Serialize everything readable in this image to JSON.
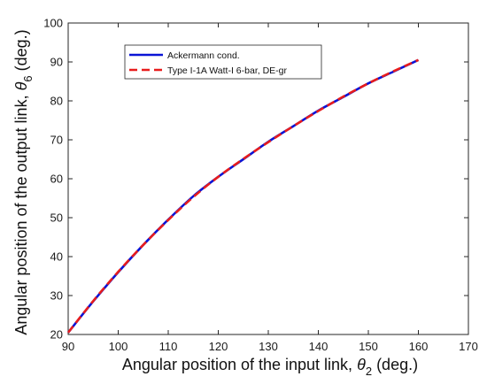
{
  "chart_data": {
    "type": "line",
    "xlabel": {
      "text": "Angular position of the input link, ",
      "symbol": "θ",
      "subscript": "2",
      "suffix": " (deg.)"
    },
    "ylabel": {
      "text": "Angular position of the output link, ",
      "symbol": "θ",
      "subscript": "6",
      "suffix": " (deg.)"
    },
    "xlim": [
      90,
      170
    ],
    "ylim": [
      20,
      100
    ],
    "xticks": [
      90,
      100,
      110,
      120,
      130,
      140,
      150,
      160,
      170
    ],
    "yticks": [
      20,
      30,
      40,
      50,
      60,
      70,
      80,
      90,
      100
    ],
    "grid": false,
    "legend_position": "top-left",
    "x": [
      90,
      95,
      100,
      105,
      110,
      115,
      120,
      125,
      130,
      135,
      140,
      145,
      150,
      155,
      160
    ],
    "series": [
      {
        "name": "Ackermann cond.",
        "color": "#0a14d6",
        "style": "solid",
        "values": [
          20.5,
          28.5,
          36.0,
          43.0,
          49.5,
          55.5,
          60.5,
          65.0,
          69.5,
          73.5,
          77.5,
          81.0,
          84.5,
          87.5,
          90.5
        ]
      },
      {
        "name": "Type I-1A Watt-I 6-bar, DE-gr",
        "color": "#e81c1c",
        "style": "dashed",
        "values": [
          20.5,
          28.6,
          36.1,
          43.0,
          49.4,
          55.3,
          60.5,
          65.1,
          69.4,
          73.5,
          77.4,
          81.1,
          84.5,
          87.6,
          90.5
        ]
      }
    ]
  }
}
